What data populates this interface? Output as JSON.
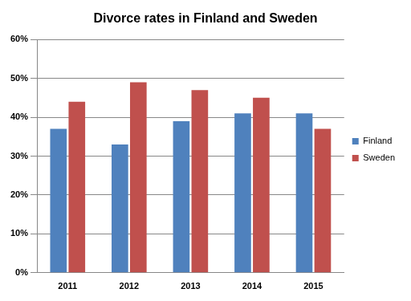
{
  "chart_data": {
    "type": "bar",
    "title": "Divorce rates in Finland and Sweden",
    "categories": [
      "2011",
      "2012",
      "2013",
      "2014",
      "2015"
    ],
    "series": [
      {
        "name": "Finland",
        "color": "#4f81bd",
        "values": [
          37,
          33,
          39,
          41,
          41
        ]
      },
      {
        "name": "Sweden",
        "color": "#c0504d",
        "values": [
          44,
          49,
          47,
          45,
          37
        ]
      }
    ],
    "ylim": [
      0,
      60
    ],
    "yticks": [
      {
        "value": 0,
        "label": "0%"
      },
      {
        "value": 10,
        "label": "10%"
      },
      {
        "value": 20,
        "label": "20%"
      },
      {
        "value": 30,
        "label": "30%"
      },
      {
        "value": 40,
        "label": "40%"
      },
      {
        "value": 50,
        "label": "50%"
      },
      {
        "value": 60,
        "label": "60%"
      }
    ],
    "grid": true,
    "legend": "right"
  }
}
